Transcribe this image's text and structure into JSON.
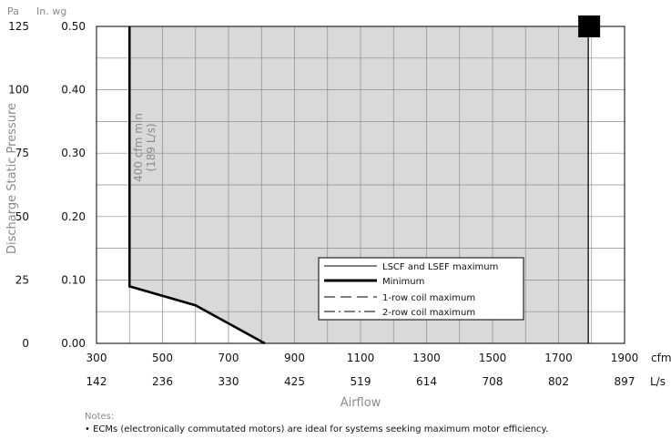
{
  "chart_data": {
    "type": "area",
    "title": "",
    "xlabel": "Airflow",
    "ylabel": "Discharge Static Pressure",
    "x_unit_primary": "cfm",
    "x_unit_secondary": "L/s",
    "y_unit_left": "Pa",
    "y_unit_right": "In. wg",
    "xlim": [
      300,
      1900
    ],
    "ylim": [
      0,
      0.5
    ],
    "x_ticks": [
      300,
      500,
      700,
      900,
      1100,
      1300,
      1500,
      1700,
      1900
    ],
    "x_tick_labels_primary": [
      "300",
      "500",
      "700",
      "900",
      "1100",
      "1300",
      "1500",
      "1700",
      "1900"
    ],
    "x_tick_labels_secondary": [
      "142",
      "236",
      "330",
      "425",
      "519",
      "614",
      "708",
      "802",
      "897"
    ],
    "y_ticks": [
      0,
      0.1,
      0.2,
      0.3,
      0.4,
      0.5
    ],
    "y_tick_labels_pa": [
      "0",
      "25",
      "50",
      "75",
      "100",
      "125"
    ],
    "y_tick_labels_inwg": [
      "0.00",
      "0.10",
      "0.20",
      "0.30",
      "0.40",
      "0.50"
    ],
    "grid": true,
    "grid_x_step": 100,
    "grid_y_step": 0.05,
    "shaded_region": {
      "x_min": 400,
      "x_max": 1790,
      "y_top": 0.5,
      "bottom_boundary": [
        [
          400,
          0.5
        ],
        [
          400,
          0.09
        ],
        [
          600,
          0.06
        ],
        [
          810,
          0.0
        ]
      ]
    },
    "series": [
      {
        "name": "LSCF and LSEF maximum",
        "style": "solid-thin",
        "points": [
          [
            1790,
            0.0
          ],
          [
            1790,
            0.5
          ]
        ]
      },
      {
        "name": "Minimum",
        "style": "solid-thick",
        "points": [
          [
            400,
            0.5
          ],
          [
            400,
            0.09
          ],
          [
            600,
            0.06
          ],
          [
            810,
            0.0
          ]
        ]
      },
      {
        "name": "1-row coil maximum",
        "style": "dashed",
        "points": []
      },
      {
        "name": "2-row coil maximum",
        "style": "dash-dot",
        "points": []
      }
    ],
    "annotation": {
      "line1": "400 cfm min",
      "line2": "(189 L/s)",
      "x": 400
    },
    "marker": {
      "shape": "square",
      "x": 1790,
      "y": 0.5
    },
    "legend_position": "lower-right"
  },
  "notes": {
    "heading": "Notes:",
    "items": [
      "• ECMs (electronically commutated motors) are ideal for systems seeking maximum motor efficiency."
    ]
  },
  "colors": {
    "shade": "#d9d9d9",
    "grid": "#8c8c8c",
    "line": "#000000",
    "light_text": "#8a8a8a"
  }
}
